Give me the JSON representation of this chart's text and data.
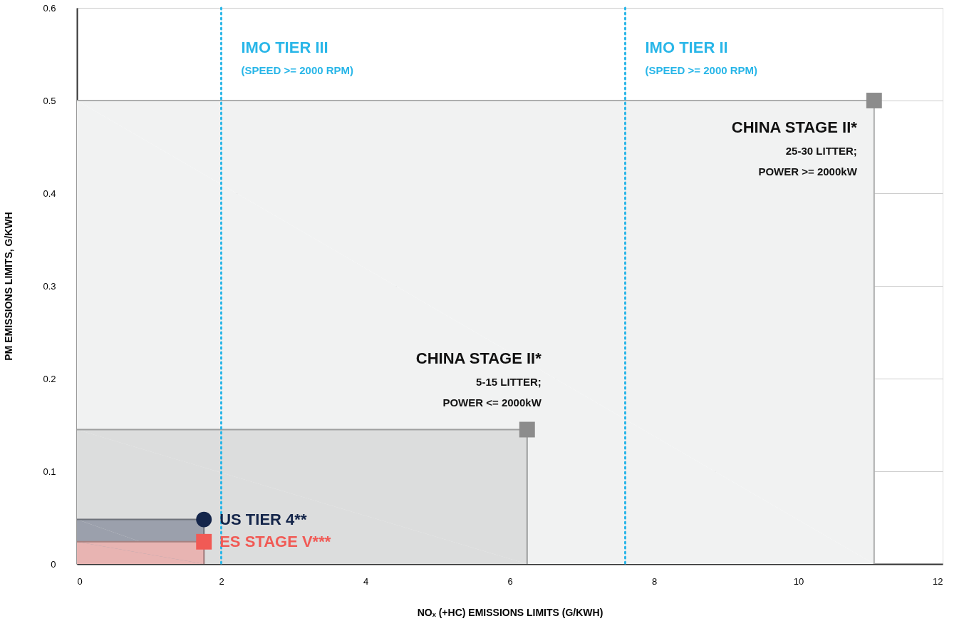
{
  "chart_data": {
    "type": "scatter",
    "xlabel": "NOₓ (+HC) EMISSIONS LIMITS (G/KWH)",
    "ylabel": "PM EMISSIONS LIMITS, G/KWH",
    "xlim": [
      0,
      12
    ],
    "xticks": [
      0,
      2,
      4,
      6,
      8,
      10,
      12
    ],
    "ylim": [
      0,
      0.6
    ],
    "yticks": [
      0,
      0.1,
      0.2,
      0.3,
      0.4,
      0.5,
      0.6
    ],
    "grid": "y",
    "series": [
      {
        "type": "area",
        "color": "#f1f2f2",
        "x": [
          0,
          11.05,
          11.05
        ],
        "values": [
          0.5,
          0.5,
          0
        ]
      },
      {
        "type": "area",
        "color": "#dcdddd",
        "x": [
          0,
          6.24,
          6.24
        ],
        "values": [
          0.145,
          0.145,
          0
        ]
      },
      {
        "type": "area",
        "color": "#9ba0ac",
        "x": [
          0,
          1.76,
          1.76
        ],
        "values": [
          0.048,
          0.048,
          0
        ]
      },
      {
        "type": "area",
        "color": "#e8b4b2",
        "x": [
          0,
          1.76,
          1.76
        ],
        "values": [
          0.024,
          0.024,
          0
        ]
      },
      {
        "type": "scatter",
        "marker": "square",
        "color": "#8c8c8c",
        "x": [
          11.05,
          6.24
        ],
        "values": [
          0.5,
          0.145
        ]
      },
      {
        "type": "scatter",
        "marker": "circle",
        "name": "US TIER 4**",
        "color": "#14254a",
        "x": [
          1.76
        ],
        "values": [
          0.048
        ]
      },
      {
        "type": "scatter",
        "marker": "square",
        "name": "ES STAGE V***",
        "color": "#f15a55",
        "x": [
          1.76
        ],
        "values": [
          0.024
        ]
      }
    ],
    "ref_lines": [
      {
        "axis": "x",
        "value": 2.0,
        "label": "IMO TIER III",
        "color": "#29b6e8",
        "line_style": "dotted"
      },
      {
        "axis": "x",
        "value": 7.6,
        "label": "IMO TIER II",
        "color": "#29b6e8",
        "line_style": "dotted"
      }
    ],
    "annotations": [
      {
        "text": "(SPEED >= 2000 RPM)",
        "x": 2.0
      },
      {
        "text": "(SPEED >= 2000 RPM)",
        "x": 7.6
      },
      {
        "text": "CHINA STAGE II*\n25-30 LITTER;\nPOWER >= 2000kW",
        "x": 11.05,
        "y": 0.5
      },
      {
        "text": "CHINA STAGE II*\n5-15 LITTER;\nPOWER <= 2000kW",
        "x": 6.24,
        "y": 0.145
      }
    ]
  }
}
